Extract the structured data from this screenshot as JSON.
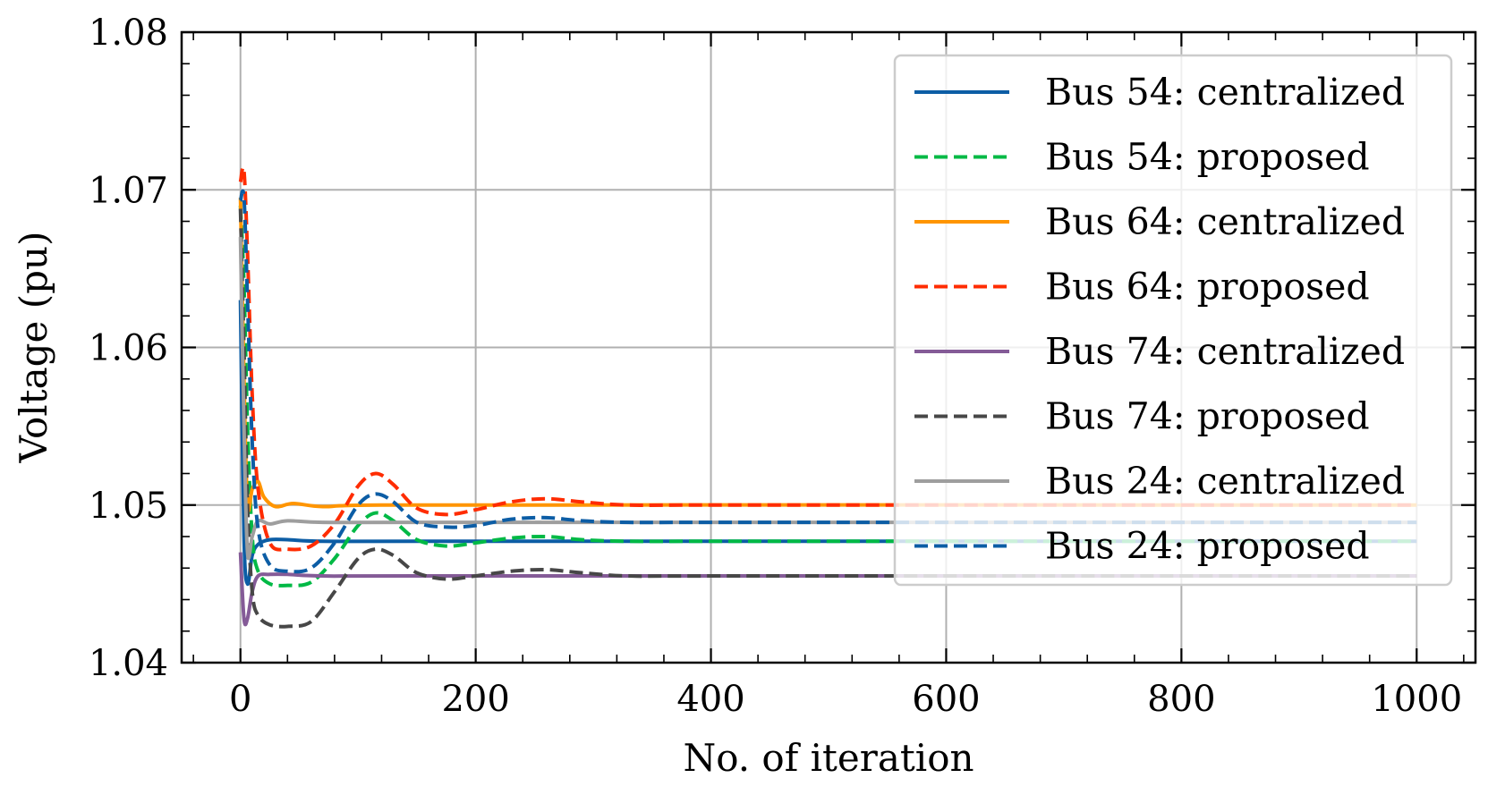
{
  "chart_data": {
    "type": "line",
    "title": "",
    "xlabel": "No. of iteration",
    "ylabel": "Voltage (pu)",
    "xlim": [
      -50,
      1050
    ],
    "ylim": [
      1.04,
      1.08
    ],
    "xticks": [
      0,
      200,
      400,
      600,
      800,
      1000
    ],
    "xtick_labels": [
      "0",
      "200",
      "400",
      "600",
      "800",
      "1000"
    ],
    "yticks": [
      1.04,
      1.05,
      1.06,
      1.07,
      1.08
    ],
    "ytick_labels": [
      "1.04",
      "1.05",
      "1.06",
      "1.07",
      "1.08"
    ],
    "grid": true,
    "legend_position": "top-right",
    "series": [
      {
        "name": "Bus 54: centralized",
        "color": "#0C5DA5",
        "dash": "solid",
        "points": [
          [
            0,
            1.063
          ],
          [
            3,
            1.048
          ],
          [
            6,
            1.045
          ],
          [
            10,
            1.0468
          ],
          [
            15,
            1.0475
          ],
          [
            25,
            1.0478
          ],
          [
            40,
            1.0478
          ],
          [
            70,
            1.0477
          ],
          [
            150,
            1.0477
          ],
          [
            1000,
            1.0477
          ]
        ]
      },
      {
        "name": "Bus 54: proposed",
        "color": "#00B945",
        "dash": "dashed",
        "points": [
          [
            0,
            1.069
          ],
          [
            3,
            1.064
          ],
          [
            6,
            1.055
          ],
          [
            10,
            1.048
          ],
          [
            15,
            1.0458
          ],
          [
            25,
            1.045
          ],
          [
            40,
            1.0449
          ],
          [
            60,
            1.0451
          ],
          [
            80,
            1.0466
          ],
          [
            100,
            1.0487
          ],
          [
            115,
            1.0495
          ],
          [
            130,
            1.049
          ],
          [
            150,
            1.0478
          ],
          [
            175,
            1.0474
          ],
          [
            200,
            1.0476
          ],
          [
            230,
            1.0479
          ],
          [
            260,
            1.048
          ],
          [
            290,
            1.0478
          ],
          [
            330,
            1.0477
          ],
          [
            400,
            1.0477
          ],
          [
            1000,
            1.0477
          ]
        ]
      },
      {
        "name": "Bus 64: centralized",
        "color": "#FF9500",
        "dash": "solid",
        "points": [
          [
            0,
            1.0695
          ],
          [
            3,
            1.058
          ],
          [
            6,
            1.05
          ],
          [
            10,
            1.051
          ],
          [
            15,
            1.0515
          ],
          [
            20,
            1.0505
          ],
          [
            30,
            1.0499
          ],
          [
            45,
            1.0501
          ],
          [
            70,
            1.0499
          ],
          [
            120,
            1.05
          ],
          [
            1000,
            1.05
          ]
        ]
      },
      {
        "name": "Bus 64: proposed",
        "color": "#FF2C00",
        "dash": "dashed",
        "points": [
          [
            0,
            1.0705
          ],
          [
            3,
            1.0712
          ],
          [
            6,
            1.066
          ],
          [
            10,
            1.057
          ],
          [
            15,
            1.051
          ],
          [
            25,
            1.0476
          ],
          [
            40,
            1.0472
          ],
          [
            60,
            1.0474
          ],
          [
            80,
            1.0488
          ],
          [
            100,
            1.0512
          ],
          [
            115,
            1.052
          ],
          [
            130,
            1.0513
          ],
          [
            150,
            1.0498
          ],
          [
            175,
            1.0494
          ],
          [
            200,
            1.0497
          ],
          [
            230,
            1.0502
          ],
          [
            260,
            1.0504
          ],
          [
            290,
            1.0502
          ],
          [
            330,
            1.05
          ],
          [
            400,
            1.05
          ],
          [
            1000,
            1.05
          ]
        ]
      },
      {
        "name": "Bus 74: centralized",
        "color": "#845B97",
        "dash": "solid",
        "points": [
          [
            0,
            1.047
          ],
          [
            3,
            1.0428
          ],
          [
            6,
            1.0428
          ],
          [
            10,
            1.0445
          ],
          [
            15,
            1.0455
          ],
          [
            25,
            1.0456
          ],
          [
            40,
            1.0456
          ],
          [
            70,
            1.0455
          ],
          [
            150,
            1.0455
          ],
          [
            1000,
            1.0455
          ]
        ]
      },
      {
        "name": "Bus 74: proposed",
        "color": "#474747",
        "dash": "dashed",
        "points": [
          [
            0,
            1.0688
          ],
          [
            3,
            1.06
          ],
          [
            6,
            1.05
          ],
          [
            10,
            1.0445
          ],
          [
            15,
            1.043
          ],
          [
            25,
            1.0424
          ],
          [
            40,
            1.0423
          ],
          [
            60,
            1.0426
          ],
          [
            80,
            1.0445
          ],
          [
            100,
            1.0466
          ],
          [
            115,
            1.0472
          ],
          [
            130,
            1.0468
          ],
          [
            150,
            1.0457
          ],
          [
            175,
            1.0453
          ],
          [
            200,
            1.0455
          ],
          [
            230,
            1.0458
          ],
          [
            260,
            1.0459
          ],
          [
            290,
            1.0457
          ],
          [
            330,
            1.0455
          ],
          [
            400,
            1.0455
          ],
          [
            1000,
            1.0455
          ]
        ]
      },
      {
        "name": "Bus 24: centralized",
        "color": "#9E9E9E",
        "dash": "solid",
        "points": [
          [
            0,
            1.067
          ],
          [
            3,
            1.055
          ],
          [
            6,
            1.047
          ],
          [
            10,
            1.048
          ],
          [
            15,
            1.049
          ],
          [
            25,
            1.0488
          ],
          [
            40,
            1.049
          ],
          [
            70,
            1.0489
          ],
          [
            150,
            1.0489
          ],
          [
            1000,
            1.0489
          ]
        ]
      },
      {
        "name": "Bus 24: proposed",
        "color": "#0C5DA5",
        "dash": "dashed",
        "points": [
          [
            0,
            1.0693
          ],
          [
            3,
            1.0695
          ],
          [
            6,
            1.063
          ],
          [
            10,
            1.054
          ],
          [
            15,
            1.0485
          ],
          [
            25,
            1.0462
          ],
          [
            40,
            1.0458
          ],
          [
            60,
            1.046
          ],
          [
            80,
            1.0476
          ],
          [
            100,
            1.05
          ],
          [
            115,
            1.0507
          ],
          [
            130,
            1.0502
          ],
          [
            150,
            1.0489
          ],
          [
            175,
            1.0486
          ],
          [
            200,
            1.0487
          ],
          [
            230,
            1.0491
          ],
          [
            260,
            1.0492
          ],
          [
            290,
            1.049
          ],
          [
            330,
            1.0489
          ],
          [
            400,
            1.0489
          ],
          [
            1000,
            1.0489
          ]
        ]
      }
    ]
  }
}
